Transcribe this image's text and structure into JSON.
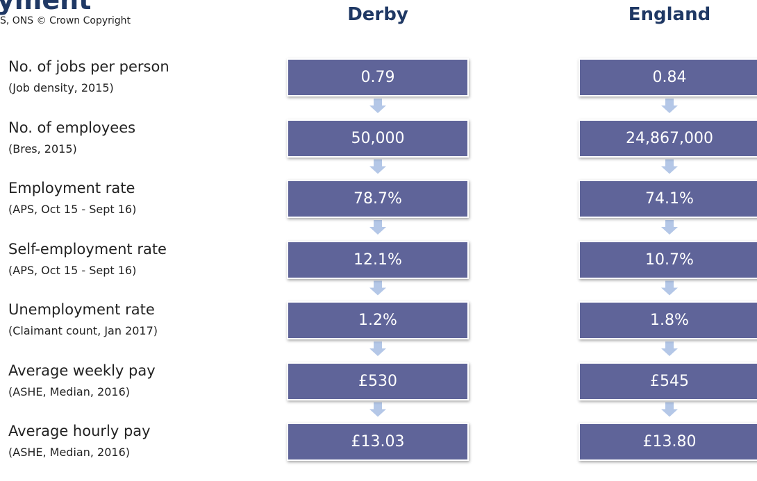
{
  "header": {
    "title": "yment",
    "source": "S, ONS © Crown Copyright",
    "columns": [
      "Derby",
      "England"
    ]
  },
  "rows": [
    {
      "label": "No. of jobs per person",
      "sublabel": "(Job density, 2015)",
      "values": [
        "0.79",
        "0.84"
      ]
    },
    {
      "label": "No. of employees",
      "sublabel": "(Bres,  2015)",
      "values": [
        "50,000",
        "24,867,000"
      ]
    },
    {
      "label": "Employment rate",
      "sublabel": "(APS, Oct 15 - Sept 16)",
      "values": [
        "78.7%",
        "74.1%"
      ]
    },
    {
      "label": "Self-employment rate",
      "sublabel": "(APS, Oct 15 - Sept 16)",
      "values": [
        "12.1%",
        "10.7%"
      ]
    },
    {
      "label": "Unemployment rate",
      "sublabel": "(Claimant count, Jan 2017)",
      "values": [
        "1.2%",
        "1.8%"
      ]
    },
    {
      "label": "Average weekly pay",
      "sublabel": "(ASHE, Median, 2016)",
      "values": [
        "£530",
        "£545"
      ]
    },
    {
      "label": "Average hourly pay",
      "sublabel": "(ASHE, Median, 2016)",
      "values": [
        "£13.03",
        "£13.80"
      ]
    }
  ]
}
